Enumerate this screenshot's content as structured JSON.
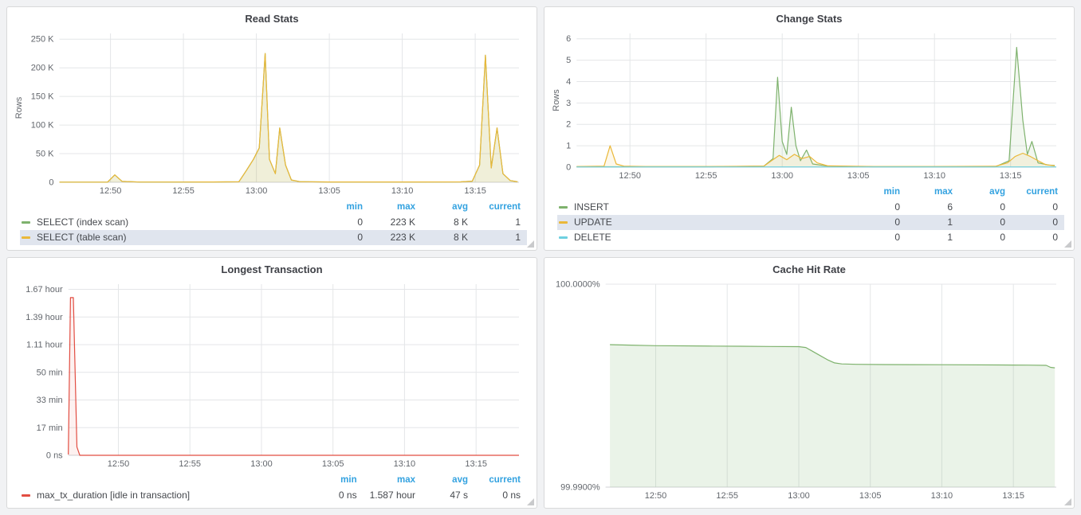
{
  "colors": {
    "page_bg": "#f1f2f4",
    "panel_bg": "#ffffff",
    "panel_border": "#d8d9da",
    "grid": "#e4e6e8",
    "axis_text": "#62666c",
    "legend_header": "#33a2e0",
    "legend_highlight_bg": "#e0e5ee",
    "green": "#7eb26d",
    "yellow": "#eab839",
    "cyan": "#6ed0e0",
    "red": "#e24d42"
  },
  "chart_data": [
    {
      "type": "line",
      "title": "Read Stats",
      "ylabel": "Rows",
      "x_range": [
        766.5,
        798
      ],
      "x_ticks": [
        770,
        775,
        780,
        785,
        790,
        795
      ],
      "x_tick_labels": [
        "12:50",
        "12:55",
        "13:00",
        "13:05",
        "13:10",
        "13:15"
      ],
      "y_range": [
        0,
        260000
      ],
      "y_ticks": [
        0,
        50000,
        100000,
        150000,
        200000,
        250000
      ],
      "y_tick_labels": [
        "0",
        "50 K",
        "100 K",
        "150 K",
        "200 K",
        "250 K"
      ],
      "grid": true,
      "series": [
        {
          "name": "SELECT (index scan)",
          "color": "#7eb26d",
          "fill_opacity": 0.1,
          "points": [
            [
              766.5,
              300
            ],
            [
              768,
              300
            ],
            [
              769.8,
              300
            ],
            [
              770.3,
              13000
            ],
            [
              770.8,
              1500
            ],
            [
              772,
              400
            ],
            [
              775,
              400
            ],
            [
              777,
              600
            ],
            [
              778.8,
              800
            ],
            [
              779.3,
              20000
            ],
            [
              779.8,
              40000
            ],
            [
              780.2,
              60000
            ],
            [
              780.6,
              225000
            ],
            [
              780.9,
              40000
            ],
            [
              781.3,
              15000
            ],
            [
              781.6,
              95000
            ],
            [
              782,
              30000
            ],
            [
              782.4,
              4000
            ],
            [
              783,
              1000
            ],
            [
              785,
              500
            ],
            [
              788,
              500
            ],
            [
              791,
              500
            ],
            [
              794,
              700
            ],
            [
              794.8,
              2000
            ],
            [
              795.3,
              30000
            ],
            [
              795.7,
              222000
            ],
            [
              796.1,
              25000
            ],
            [
              796.5,
              95000
            ],
            [
              796.9,
              15000
            ],
            [
              797.4,
              3000
            ],
            [
              797.9,
              800
            ]
          ]
        },
        {
          "name": "SELECT (table scan)",
          "color": "#eab839",
          "fill_opacity": 0.12,
          "points": [
            [
              766.5,
              300
            ],
            [
              768,
              300
            ],
            [
              769.8,
              300
            ],
            [
              770.3,
              13000
            ],
            [
              770.8,
              1500
            ],
            [
              772,
              400
            ],
            [
              775,
              400
            ],
            [
              777,
              600
            ],
            [
              778.8,
              800
            ],
            [
              779.3,
              20000
            ],
            [
              779.8,
              40000
            ],
            [
              780.2,
              60000
            ],
            [
              780.6,
              225000
            ],
            [
              780.9,
              40000
            ],
            [
              781.3,
              15000
            ],
            [
              781.6,
              95000
            ],
            [
              782,
              30000
            ],
            [
              782.4,
              4000
            ],
            [
              783,
              1000
            ],
            [
              785,
              500
            ],
            [
              788,
              500
            ],
            [
              791,
              500
            ],
            [
              794,
              700
            ],
            [
              794.8,
              2000
            ],
            [
              795.3,
              30000
            ],
            [
              795.7,
              222000
            ],
            [
              796.1,
              25000
            ],
            [
              796.5,
              95000
            ],
            [
              796.9,
              15000
            ],
            [
              797.4,
              3000
            ],
            [
              797.9,
              800
            ]
          ]
        }
      ],
      "legend": {
        "columns": [
          "min",
          "max",
          "avg",
          "current"
        ],
        "rows": [
          {
            "label": "SELECT (index scan)",
            "color": "#7eb26d",
            "values": [
              "0",
              "223 K",
              "8 K",
              "1"
            ],
            "highlight": false
          },
          {
            "label": "SELECT (table scan)",
            "color": "#eab839",
            "values": [
              "0",
              "223 K",
              "8 K",
              "1"
            ],
            "highlight": true
          }
        ]
      }
    },
    {
      "type": "line",
      "title": "Change Stats",
      "ylabel": "Rows",
      "x_range": [
        766.5,
        798
      ],
      "x_ticks": [
        770,
        775,
        780,
        785,
        790,
        795
      ],
      "x_tick_labels": [
        "12:50",
        "12:55",
        "13:00",
        "13:05",
        "13:10",
        "13:15"
      ],
      "y_range": [
        0,
        6.25
      ],
      "y_ticks": [
        0,
        1,
        2,
        3,
        4,
        5,
        6
      ],
      "y_tick_labels": [
        "0",
        "1",
        "2",
        "3",
        "4",
        "5",
        "6"
      ],
      "grid": true,
      "series": [
        {
          "name": "INSERT",
          "color": "#7eb26d",
          "fill_opacity": 0.1,
          "points": [
            [
              766.5,
              0.02
            ],
            [
              770,
              0.02
            ],
            [
              775,
              0.02
            ],
            [
              778.8,
              0.05
            ],
            [
              779.4,
              0.4
            ],
            [
              779.7,
              4.2
            ],
            [
              780,
              1.2
            ],
            [
              780.3,
              0.6
            ],
            [
              780.6,
              2.8
            ],
            [
              780.9,
              1.0
            ],
            [
              781.2,
              0.3
            ],
            [
              781.6,
              0.8
            ],
            [
              782,
              0.15
            ],
            [
              783,
              0.05
            ],
            [
              786,
              0.02
            ],
            [
              790,
              0.02
            ],
            [
              794,
              0.02
            ],
            [
              794.9,
              0.3
            ],
            [
              795.4,
              5.6
            ],
            [
              795.8,
              2.2
            ],
            [
              796.1,
              0.6
            ],
            [
              796.4,
              1.2
            ],
            [
              796.8,
              0.2
            ],
            [
              797.5,
              0.1
            ],
            [
              797.9,
              0.08
            ]
          ]
        },
        {
          "name": "UPDATE",
          "color": "#eab839",
          "fill_opacity": 0.1,
          "points": [
            [
              766.5,
              0.03
            ],
            [
              768.3,
              0.05
            ],
            [
              768.7,
              1.0
            ],
            [
              769.1,
              0.15
            ],
            [
              769.6,
              0.05
            ],
            [
              771,
              0.03
            ],
            [
              775,
              0.03
            ],
            [
              778.8,
              0.05
            ],
            [
              779.3,
              0.3
            ],
            [
              779.8,
              0.55
            ],
            [
              780.3,
              0.35
            ],
            [
              780.8,
              0.6
            ],
            [
              781.3,
              0.4
            ],
            [
              781.8,
              0.5
            ],
            [
              782.3,
              0.2
            ],
            [
              783,
              0.06
            ],
            [
              786,
              0.03
            ],
            [
              790,
              0.03
            ],
            [
              794,
              0.04
            ],
            [
              794.8,
              0.2
            ],
            [
              795.3,
              0.5
            ],
            [
              795.8,
              0.65
            ],
            [
              796.3,
              0.5
            ],
            [
              796.8,
              0.3
            ],
            [
              797.3,
              0.12
            ],
            [
              797.9,
              0.06
            ]
          ]
        },
        {
          "name": "DELETE",
          "color": "#6ed0e0",
          "fill_opacity": 0.1,
          "points": [
            [
              766.5,
              0.01
            ],
            [
              775,
              0.01
            ],
            [
              785,
              0.01
            ],
            [
              798,
              0.01
            ]
          ]
        }
      ],
      "legend": {
        "columns": [
          "min",
          "max",
          "avg",
          "current"
        ],
        "rows": [
          {
            "label": "INSERT",
            "color": "#7eb26d",
            "values": [
              "0",
              "6",
              "0",
              "0"
            ],
            "highlight": false
          },
          {
            "label": "UPDATE",
            "color": "#eab839",
            "values": [
              "0",
              "1",
              "0",
              "0"
            ],
            "highlight": true
          },
          {
            "label": "DELETE",
            "color": "#6ed0e0",
            "values": [
              "0",
              "1",
              "0",
              "0"
            ],
            "highlight": false
          }
        ]
      }
    },
    {
      "type": "line",
      "title": "Longest Transaction",
      "ylabel": "",
      "x_range": [
        766.5,
        798
      ],
      "x_ticks": [
        770,
        775,
        780,
        785,
        790,
        795
      ],
      "x_tick_labels": [
        "12:50",
        "12:55",
        "13:00",
        "13:05",
        "13:10",
        "13:15"
      ],
      "y_range": [
        0,
        6200
      ],
      "y_ticks": [
        0,
        1002,
        2004,
        3006,
        4008,
        5010,
        6012
      ],
      "y_tick_labels": [
        "0 ns",
        "17 min",
        "33 min",
        "50 min",
        "1.11 hour",
        "1.39 hour",
        "1.67 hour"
      ],
      "grid": true,
      "series": [
        {
          "name": "max_tx_duration [idle in transaction]",
          "color": "#e24d42",
          "fill_opacity": 0.08,
          "points": [
            [
              766.5,
              30
            ],
            [
              766.65,
              5713
            ],
            [
              766.85,
              5713
            ],
            [
              767.1,
              300
            ],
            [
              767.3,
              0
            ],
            [
              770,
              0
            ],
            [
              775,
              0
            ],
            [
              780,
              0
            ],
            [
              785,
              0
            ],
            [
              790,
              0
            ],
            [
              795,
              0
            ],
            [
              798,
              0
            ]
          ]
        }
      ],
      "legend": {
        "columns": [
          "min",
          "max",
          "avg",
          "current"
        ],
        "rows": [
          {
            "label": "max_tx_duration [idle in transaction]",
            "color": "#e24d42",
            "values": [
              "0 ns",
              "1.587 hour",
              "47 s",
              "0 ns"
            ],
            "highlight": false
          }
        ]
      }
    },
    {
      "type": "area",
      "title": "Cache Hit Rate",
      "ylabel": "",
      "x_range": [
        766.5,
        798
      ],
      "x_ticks": [
        770,
        775,
        780,
        785,
        790,
        795
      ],
      "x_tick_labels": [
        "12:50",
        "12:55",
        "13:00",
        "13:05",
        "13:10",
        "13:15"
      ],
      "y_range": [
        99.99,
        100.0
      ],
      "y_ticks": [
        99.99,
        100.0
      ],
      "y_tick_labels": [
        "99.9900%",
        "100.0000%"
      ],
      "grid": true,
      "series": [
        {
          "color": "#7eb26d",
          "fill_opacity": 0.16,
          "points": [
            [
              766.8,
              99.99702
            ],
            [
              768,
              99.997
            ],
            [
              770,
              99.99697
            ],
            [
              772,
              99.99696
            ],
            [
              774,
              99.99695
            ],
            [
              776,
              99.99694
            ],
            [
              778,
              99.99693
            ],
            [
              780,
              99.99692
            ],
            [
              780.5,
              99.99688
            ],
            [
              781,
              99.99668
            ],
            [
              781.5,
              99.99648
            ],
            [
              782,
              99.99628
            ],
            [
              782.5,
              99.99612
            ],
            [
              783,
              99.99607
            ],
            [
              784,
              99.99605
            ],
            [
              786,
              99.99604
            ],
            [
              790,
              99.99603
            ],
            [
              794,
              99.99602
            ],
            [
              796,
              99.99601
            ],
            [
              797.3,
              99.996
            ],
            [
              797.6,
              99.9959
            ],
            [
              797.9,
              99.99588
            ]
          ]
        }
      ],
      "legend": null
    }
  ]
}
